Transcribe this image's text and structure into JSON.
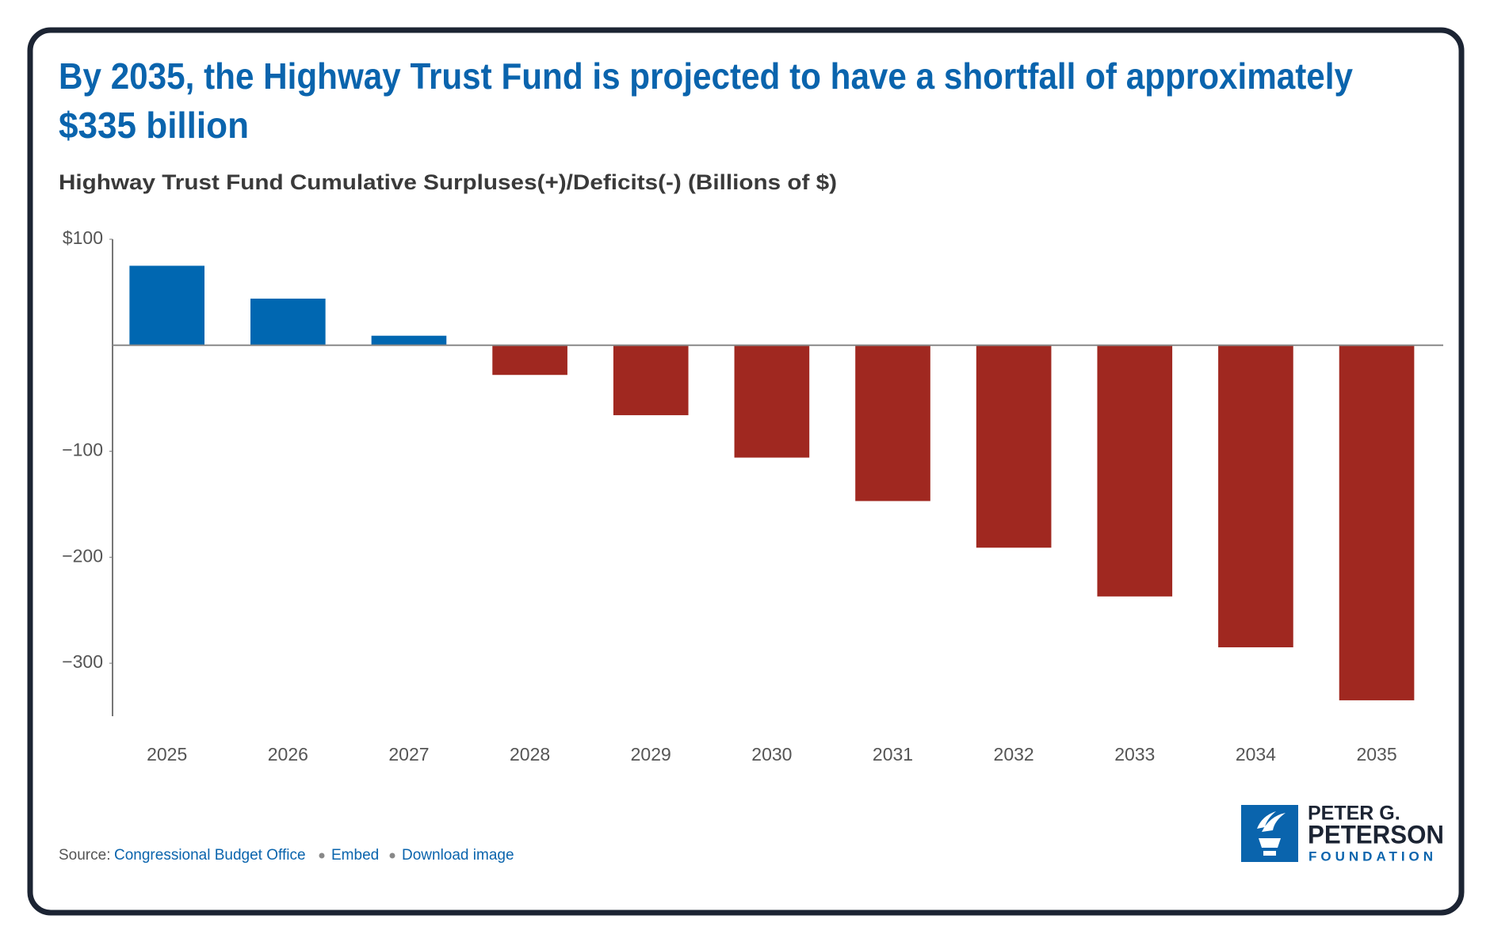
{
  "chart_data": {
    "type": "bar",
    "title": "By 2035, the Highway Trust Fund is projected to have a shortfall of approximately $335 billion",
    "subtitle": "Highway Trust Fund Cumulative Surpluses(+)/Deficits(-) (Billions of $)",
    "categories": [
      "2025",
      "2026",
      "2027",
      "2028",
      "2029",
      "2030",
      "2031",
      "2032",
      "2033",
      "2034",
      "2035"
    ],
    "values": [
      75,
      44,
      9,
      -28,
      -66,
      -106,
      -147,
      -191,
      -237,
      -285,
      -335
    ],
    "positive_color": "#0067b1",
    "negative_color": "#a02820",
    "ylim": [
      -350,
      100
    ],
    "yticks": [
      {
        "value": 100,
        "label": "$100"
      },
      {
        "value": -100,
        "label": "−100"
      },
      {
        "value": -200,
        "label": "−200"
      },
      {
        "value": -300,
        "label": "−300"
      }
    ]
  },
  "footer": {
    "source_label": "Source:",
    "links": [
      "Congressional Budget Office",
      "Embed",
      "Download image"
    ]
  },
  "logo": {
    "lines": [
      "PETER G.",
      "PETERSON",
      "FOUNDATION"
    ]
  }
}
